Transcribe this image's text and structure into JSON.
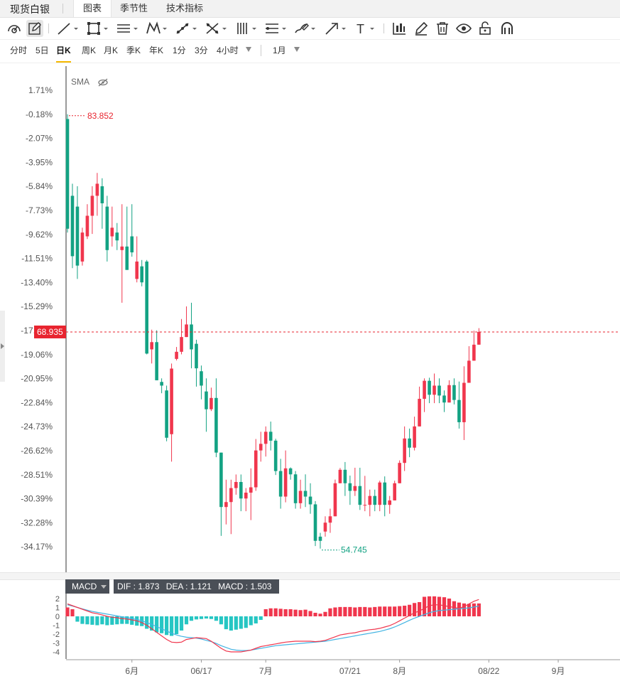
{
  "app": {
    "title": "现货白银"
  },
  "tabs": [
    {
      "label": "图表",
      "active": true
    },
    {
      "label": "季节性",
      "active": false
    },
    {
      "label": "技术指标",
      "active": false
    }
  ],
  "toolbar": {
    "icons": [
      "gauge-icon",
      "pencil-square-icon",
      "line-icon",
      "rectangle-icon",
      "parallel-lines-icon",
      "pattern-icon",
      "measure-icon",
      "cross-lines-icon",
      "fibonacci-icon",
      "channel-icon",
      "brush-icon",
      "arrow-icon",
      "text-icon",
      "bar-chart-icon",
      "pencil-icon",
      "trash-icon",
      "eye-icon",
      "lock-icon",
      "magnet-icon"
    ],
    "text_glyph": "T"
  },
  "periods": [
    {
      "label": "分时",
      "active": false
    },
    {
      "label": "5日",
      "active": false
    },
    {
      "label": "日K",
      "active": true
    },
    {
      "label": "周K",
      "active": false
    },
    {
      "label": "月K",
      "active": false
    },
    {
      "label": "季K",
      "active": false
    },
    {
      "label": "年K",
      "active": false
    },
    {
      "label": "1分",
      "active": false
    },
    {
      "label": "3分",
      "active": false
    },
    {
      "label": "4小时",
      "active": false
    }
  ],
  "range": {
    "selected": "1月"
  },
  "indicator_label": "SMA",
  "colors": {
    "up": "#f0364d",
    "down": "#13a283",
    "dif": "#f0364d",
    "dea": "#43b4e3",
    "price_line": "#e8242f"
  },
  "chart_data": [
    {
      "type": "candlestick",
      "y_axis_ticks": [
        "1.71%",
        "-0.18%",
        "-2.07%",
        "-3.95%",
        "-5.84%",
        "-7.73%",
        "-9.62%",
        "-11.51%",
        "-13.40%",
        "-15.29%",
        "-17.17%",
        "-19.06%",
        "-20.95%",
        "-22.84%",
        "-24.73%",
        "-26.62%",
        "-28.51%",
        "-30.39%",
        "-32.28%",
        "-34.17%"
      ],
      "current_price": "68.935",
      "high_label": "83.852",
      "low_label": "54.745",
      "x_axis_labels": [
        "6月",
        "06/17",
        "7月",
        "07/21",
        "8月",
        "08/22",
        "9月"
      ],
      "candles": [
        [
          -0.55,
          -9.18,
          -0.18,
          -9.48
        ],
        [
          -6.59,
          -11.34,
          -5.64,
          -12.28
        ],
        [
          -7.44,
          -12.08,
          -5.84,
          -13.13
        ],
        [
          -11.76,
          -9.48,
          -9.1,
          -12.08
        ],
        [
          -9.78,
          -8.16,
          -7.25,
          -9.99
        ],
        [
          -8.16,
          -6.59,
          -5.84,
          -9.59
        ],
        [
          -6.59,
          -5.64,
          -4.79,
          -8.16
        ],
        [
          -5.84,
          -7.18,
          -5.21,
          -9.18
        ],
        [
          -7.44,
          -10.86,
          -6.59,
          -11.76
        ],
        [
          -9.78,
          -9.1,
          -7.44,
          -10.58
        ],
        [
          -9.48,
          -10.1,
          -8.73,
          -10.86
        ],
        [
          -10.86,
          -10.58,
          -7.25,
          -15.0
        ],
        [
          -10.58,
          -12.42,
          -7.44,
          -12.42
        ],
        [
          -9.78,
          -11.04,
          -7.25,
          -11.38
        ],
        [
          -13.13,
          -11.76,
          -9.78,
          -13.4
        ],
        [
          -12.14,
          -13.4,
          -11.64,
          -13.71
        ],
        [
          -11.76,
          -19.0,
          -11.64,
          -19.06
        ],
        [
          -18.67,
          -18.1,
          -17.12,
          -19.78
        ],
        [
          -18.1,
          -21.1,
          -17.17,
          -21.1
        ],
        [
          -21.23,
          -21.52,
          -20.95,
          -22.12
        ],
        [
          -21.9,
          -25.62,
          -21.52,
          -25.9
        ],
        [
          -25.34,
          -20.18,
          -19.78,
          -27.5
        ],
        [
          -19.42,
          -18.86,
          -18.48,
          -19.54
        ],
        [
          -18.86,
          -17.7,
          -16.28,
          -19.06
        ],
        [
          -17.7,
          -16.71,
          -15.29,
          -17.7
        ],
        [
          -16.71,
          -18.67,
          -15.0,
          -20.16
        ],
        [
          -18.23,
          -20.16,
          -17.91,
          -21.6
        ],
        [
          -20.39,
          -21.52,
          -19.94,
          -22.6
        ],
        [
          -21.98,
          -23.38,
          -20.95,
          -25.15
        ],
        [
          -23.38,
          -22.49,
          -21.68,
          -23.52
        ],
        [
          -22.49,
          -26.79,
          -20.95,
          -27.15
        ],
        [
          -26.79,
          -31.07,
          -26.79,
          -33.34
        ],
        [
          -31.07,
          -30.68,
          -28.92,
          -32.44
        ],
        [
          -30.68,
          -29.58,
          -28.92,
          -33.2
        ],
        [
          -29.58,
          -29.1,
          -28.51,
          -30.1
        ],
        [
          -29.1,
          -30.4,
          -28.51,
          -31.4
        ],
        [
          -30.4,
          -29.94,
          -29.58,
          -31.4
        ],
        [
          -29.94,
          -29.52,
          -28.03,
          -32.1
        ],
        [
          -29.52,
          -26.62,
          -25.72,
          -29.8
        ],
        [
          -26.62,
          -26.1,
          -25.15,
          -27.5
        ],
        [
          -26.1,
          -25.15,
          -24.73,
          -27.1
        ],
        [
          -25.15,
          -25.85,
          -24.35,
          -26.62
        ],
        [
          -25.85,
          -28.24,
          -25.7,
          -28.55
        ],
        [
          -28.24,
          -30.25,
          -27.28,
          -31.2
        ],
        [
          -30.25,
          -28.03,
          -26.62,
          -30.7
        ],
        [
          -28.03,
          -28.5,
          -27.95,
          -28.92
        ],
        [
          -28.5,
          -30.77,
          -28.24,
          -31.2
        ],
        [
          -30.77,
          -29.8,
          -28.92,
          -31.2
        ],
        [
          -29.8,
          -30.25,
          -28.5,
          -31.07
        ],
        [
          -30.25,
          -30.86,
          -29.2,
          -31.6
        ],
        [
          -30.86,
          -33.73,
          -30.6,
          -34.14
        ],
        [
          -33.4,
          -33.73,
          -33.1,
          -34.34
        ],
        [
          -33.0,
          -32.3,
          -31.8,
          -33.4
        ],
        [
          -32.3,
          -31.8,
          -31.2,
          -33.1
        ],
        [
          -31.8,
          -29.2,
          -28.91,
          -31.8
        ],
        [
          -29.2,
          -28.14,
          -28.0,
          -29.2
        ],
        [
          -28.14,
          -29.2,
          -27.53,
          -30.2
        ],
        [
          -29.2,
          -29.8,
          -28.6,
          -30.9
        ],
        [
          -29.8,
          -29.42,
          -27.98,
          -30.2
        ],
        [
          -29.42,
          -30.9,
          -27.98,
          -31.3
        ],
        [
          -30.9,
          -30.9,
          -28.62,
          -31.4
        ],
        [
          -30.9,
          -30.2,
          -29.7,
          -31.8
        ],
        [
          -30.2,
          -30.9,
          -29.7,
          -31.4
        ],
        [
          -30.9,
          -29.14,
          -29.0,
          -31.4
        ],
        [
          -29.14,
          -30.9,
          -28.66,
          -31.8
        ],
        [
          -30.9,
          -30.55,
          -30.2,
          -31.6
        ],
        [
          -30.55,
          -29.2,
          -29.0,
          -30.55
        ],
        [
          -29.2,
          -27.6,
          -27.4,
          -29.2
        ],
        [
          -27.6,
          -25.68,
          -24.73,
          -28.24
        ],
        [
          -25.68,
          -26.4,
          -24.9,
          -27.15
        ],
        [
          -26.4,
          -24.73,
          -23.96,
          -26.62
        ],
        [
          -24.73,
          -22.56,
          -21.6,
          -24.73
        ],
        [
          -22.56,
          -21.14,
          -20.95,
          -23.6
        ],
        [
          -21.14,
          -22.24,
          -20.9,
          -22.9
        ],
        [
          -22.24,
          -21.52,
          -20.57,
          -22.9
        ],
        [
          -21.52,
          -22.3,
          -20.95,
          -22.9
        ],
        [
          -22.3,
          -22.85,
          -21.9,
          -23.6
        ],
        [
          -22.85,
          -21.48,
          -21.1,
          -22.85
        ],
        [
          -21.48,
          -22.65,
          -20.95,
          -23.0
        ],
        [
          -22.65,
          -24.4,
          -21.2,
          -24.9
        ],
        [
          -24.4,
          -21.3,
          -20.0,
          -25.8
        ],
        [
          -21.3,
          -19.56,
          -18.42,
          -21.3
        ],
        [
          -19.56,
          -18.3,
          -17.2,
          -19.56
        ],
        [
          -18.3,
          -17.3,
          -17.0,
          -18.3
        ]
      ]
    },
    {
      "type": "macd",
      "indicator": "MACD",
      "y_axis_ticks": [
        "2",
        "1",
        "0",
        "-1",
        "-2",
        "-3",
        "-4"
      ],
      "ylim": [
        -4,
        2
      ],
      "legend": {
        "dif": "DIF : 1.873",
        "dea": "DEA : 1.121",
        "macd": "MACD : 1.503"
      },
      "histogram": [
        1.0,
        0.8,
        -0.6,
        -0.85,
        -0.9,
        -0.95,
        -1.0,
        -0.9,
        -1.0,
        -0.95,
        -0.9,
        -0.85,
        -0.85,
        -0.95,
        -1.05,
        -1.1,
        -1.4,
        -1.6,
        -1.8,
        -1.9,
        -2.1,
        -2.2,
        -2.0,
        -1.6,
        -0.9,
        -0.5,
        -0.35,
        -0.3,
        -0.25,
        -0.3,
        -0.5,
        -0.9,
        -1.45,
        -1.6,
        -1.5,
        -1.4,
        -1.3,
        -1.0,
        -0.8,
        -0.4,
        0.8,
        0.9,
        0.9,
        0.85,
        0.8,
        0.8,
        0.75,
        0.7,
        0.75,
        0.6,
        0.4,
        0.3,
        0.5,
        0.9,
        1.0,
        1.05,
        1.05,
        1.05,
        1.0,
        1.05,
        1.05,
        1.0,
        1.05,
        1.1,
        1.1,
        1.1,
        1.1,
        1.15,
        1.2,
        1.3,
        1.5,
        1.6,
        2.2,
        2.25,
        2.25,
        2.2,
        2.15,
        2.0,
        1.7,
        1.55,
        1.45,
        1.4,
        1.45,
        1.45
      ],
      "dif": [
        1.4,
        1.2,
        1.0,
        0.8,
        0.6,
        0.4,
        0.3,
        0.15,
        0.0,
        -0.1,
        -0.15,
        -0.25,
        -0.3,
        -0.4,
        -0.5,
        -0.7,
        -1.0,
        -1.4,
        -1.8,
        -2.2,
        -2.6,
        -2.9,
        -2.95,
        -2.9,
        -2.6,
        -2.5,
        -2.4,
        -2.45,
        -2.5,
        -2.8,
        -3.2,
        -3.6,
        -3.9,
        -4.0,
        -4.0,
        -4.0,
        -3.9,
        -3.8,
        -3.6,
        -3.4,
        -3.3,
        -3.2,
        -3.1,
        -3.0,
        -2.9,
        -2.85,
        -2.8,
        -2.8,
        -2.8,
        -2.8,
        -2.85,
        -2.8,
        -2.7,
        -2.5,
        -2.3,
        -2.1,
        -2.0,
        -1.9,
        -1.85,
        -1.7,
        -1.6,
        -1.5,
        -1.45,
        -1.35,
        -1.2,
        -1.05,
        -0.8,
        -0.5,
        -0.2,
        0.1,
        0.4,
        0.6,
        0.9,
        1.2,
        1.3,
        1.3,
        1.2,
        1.1,
        1.0,
        0.9,
        1.1,
        1.4,
        1.7,
        1.9
      ],
      "dea": [
        1.3,
        1.15,
        1.0,
        0.85,
        0.7,
        0.55,
        0.45,
        0.35,
        0.25,
        0.15,
        0.05,
        -0.05,
        -0.15,
        -0.25,
        -0.35,
        -0.5,
        -0.7,
        -0.9,
        -1.15,
        -1.4,
        -1.65,
        -1.9,
        -2.1,
        -2.25,
        -2.35,
        -2.4,
        -2.45,
        -2.55,
        -2.7,
        -2.85,
        -3.05,
        -3.3,
        -3.5,
        -3.7,
        -3.8,
        -3.85,
        -3.85,
        -3.8,
        -3.7,
        -3.6,
        -3.5,
        -3.4,
        -3.3,
        -3.25,
        -3.2,
        -3.15,
        -3.1,
        -3.05,
        -3.0,
        -2.95,
        -2.9,
        -2.85,
        -2.8,
        -2.7,
        -2.6,
        -2.5,
        -2.4,
        -2.3,
        -2.2,
        -2.1,
        -2.0,
        -1.9,
        -1.8,
        -1.7,
        -1.55,
        -1.4,
        -1.2,
        -0.95,
        -0.7,
        -0.45,
        -0.2,
        0.0,
        0.2,
        0.4,
        0.55,
        0.65,
        0.7,
        0.75,
        0.8,
        0.85,
        0.9,
        0.95,
        1.05,
        1.15
      ]
    }
  ]
}
